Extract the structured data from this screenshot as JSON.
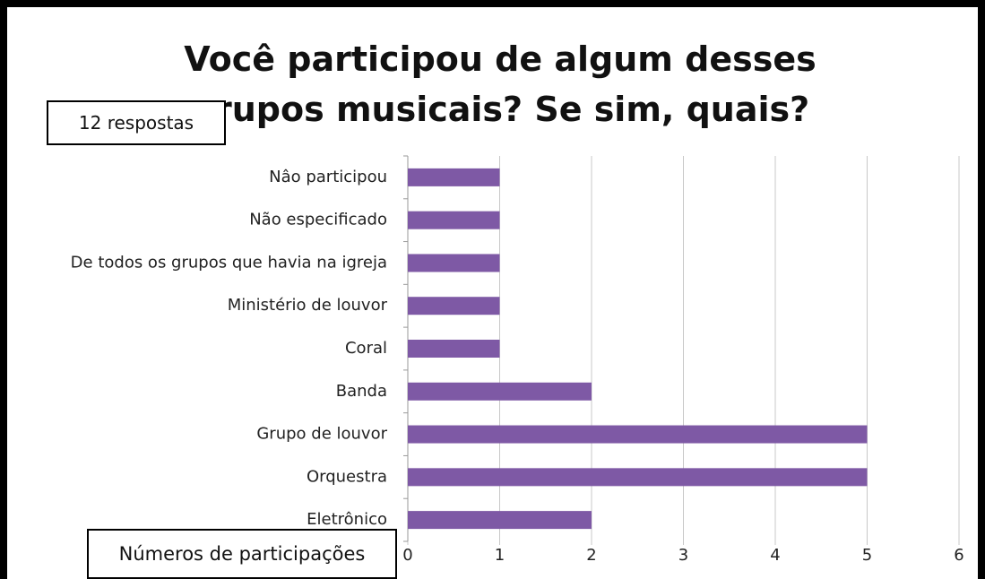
{
  "chart_data": {
    "type": "bar",
    "orientation": "horizontal",
    "title": "Você participou de algum desses grupos musicais? Se sim, quais?",
    "annotation": "12 respostas",
    "x_label": "Números de participações",
    "categories": [
      "Nâo participou",
      "Não especificado",
      "De todos os grupos que havia na igreja",
      "Ministério de louvor",
      "Coral",
      "Banda",
      "Grupo de louvor",
      "Orquestra",
      "Eletrônico"
    ],
    "values": [
      1,
      1,
      1,
      1,
      1,
      2,
      5,
      5,
      2
    ],
    "color": "#7e59a5",
    "xlim": [
      0,
      6
    ],
    "xticks": [
      0,
      1,
      2,
      3,
      4,
      5,
      6
    ],
    "grid": true
  }
}
